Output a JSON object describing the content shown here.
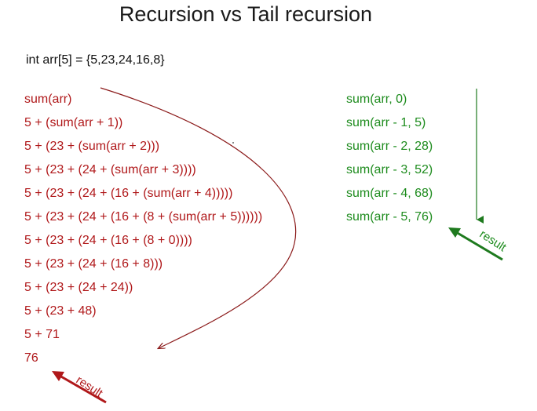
{
  "title": "Recursion vs Tail recursion",
  "declaration": "int arr[5] = {5,23,24,16,8}",
  "recursion_steps": [
    "sum(arr)",
    "5 + (sum(arr + 1))",
    "5 + (23 + (sum(arr + 2)))",
    "5 + (23 + (24 + (sum(arr + 3))))",
    "5 + (23 + (24 + (16 + (sum(arr + 4)))))",
    "5 + (23 + (24 + (16 + (8 + (sum(arr + 5))))))",
    "5 + (23 + (24 + (16 + (8 + 0))))",
    "5 + (23 + (24 + (16 + 8)))",
    "5 + (23 + (24 + 24))",
    "5 + (23 + 48)",
    "5 + 71",
    "76"
  ],
  "tail_steps": [
    "sum(arr, 0)",
    "sum(arr - 1, 5)",
    "sum(arr - 2, 28)",
    "sum(arr - 3, 52)",
    "sum(arr - 4, 68)",
    "sum(arr - 5, 76)"
  ],
  "result_label_red": "result",
  "result_label_green": "result",
  "colors": {
    "recursion": "#b0181a",
    "tail": "#1e8c1e",
    "curve": "#8b1a1a"
  }
}
